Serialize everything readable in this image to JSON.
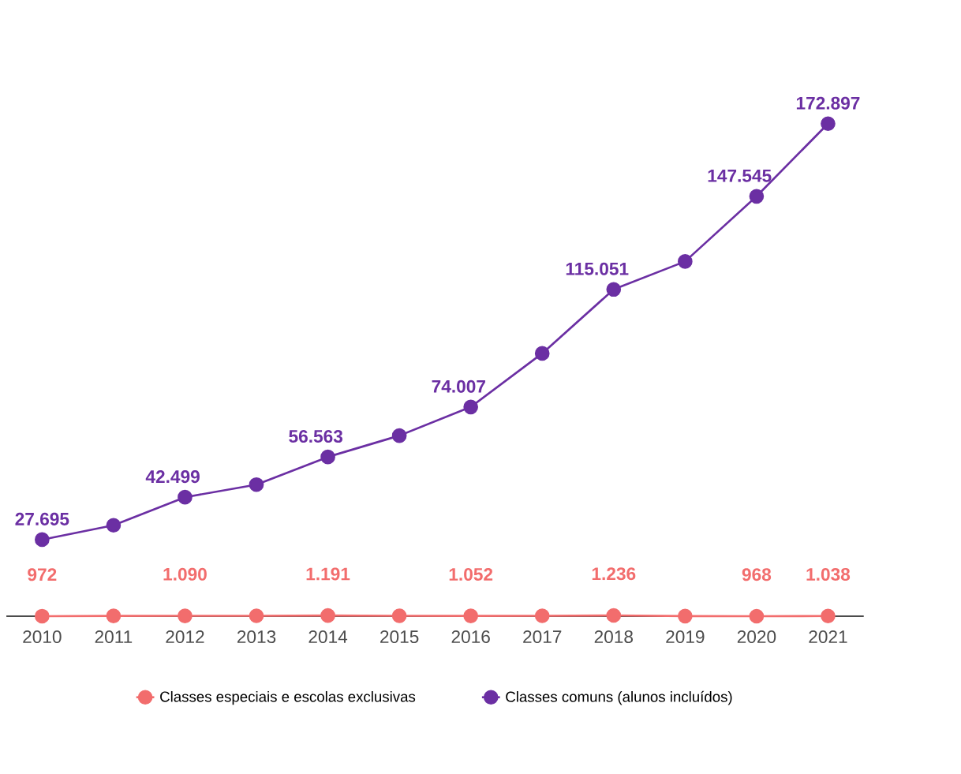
{
  "chart_data": {
    "type": "line",
    "categories": [
      "2010",
      "2011",
      "2012",
      "2013",
      "2014",
      "2015",
      "2016",
      "2017",
      "2018",
      "2019",
      "2020",
      "2021"
    ],
    "series": [
      {
        "name": "Classes especiais e escolas exclusivas",
        "color": "#f26d6d",
        "values": [
          972,
          1050,
          1090,
          1100,
          1191,
          1100,
          1052,
          1100,
          1236,
          1000,
          968,
          1038
        ],
        "value_labels": [
          "972",
          null,
          "1.090",
          null,
          "1.191",
          null,
          "1.052",
          null,
          "1.236",
          null,
          "968",
          "1.038"
        ]
      },
      {
        "name": "Classes comuns (alunos incluídos)",
        "color": "#6b2fa3",
        "values": [
          27695,
          32700,
          42499,
          46900,
          56563,
          64000,
          74007,
          92700,
          115051,
          124800,
          147545,
          172897
        ],
        "value_labels": [
          "27.695",
          null,
          "42.499",
          null,
          "56.563",
          null,
          "74.007",
          null,
          "115.051",
          null,
          "147.545",
          "172.897"
        ]
      }
    ],
    "marker": "circle",
    "line_style": "solid",
    "legend": "bottom",
    "grid": false
  }
}
